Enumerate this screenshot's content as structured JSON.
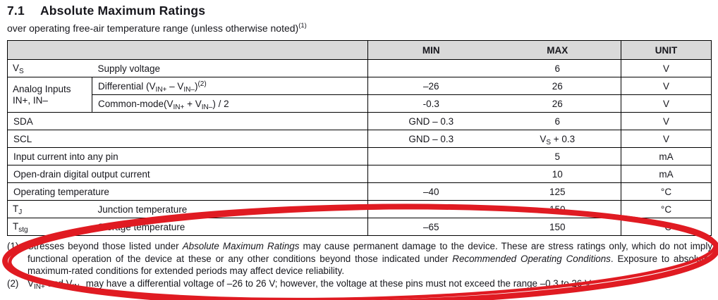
{
  "page": {
    "section_number": "7.1",
    "section_title": "Absolute Maximum Ratings",
    "subtitle": "over operating free-air temperature range (unless otherwise noted)",
    "subtitle_footnote_ref": "(1)"
  },
  "table": {
    "headers": {
      "min": "MIN",
      "max": "MAX",
      "unit": "UNIT"
    },
    "rows": [
      {
        "layout": "split",
        "symbol": "V~S~",
        "desc": "Supply voltage",
        "min": "",
        "max": "6",
        "unit": "V"
      },
      {
        "layout": "group-first",
        "symbol": "Analog Inputs\nIN+, IN–",
        "desc": "Differential (V~IN+~ – V~IN–~)^(2)^",
        "min": "–26",
        "max": "26",
        "unit": "V"
      },
      {
        "layout": "group-rest",
        "desc": "Common-mode(V~IN+~ + V~IN–~) / 2",
        "min": "-0.3",
        "max": "26",
        "unit": "V"
      },
      {
        "layout": "full",
        "desc": "SDA",
        "min": "GND – 0.3",
        "max": "6",
        "unit": "V"
      },
      {
        "layout": "full",
        "desc": "SCL",
        "min": "GND – 0.3",
        "max": "V~S~ + 0.3",
        "unit": "V"
      },
      {
        "layout": "full",
        "desc": "Input current into any pin",
        "min": "",
        "max": "5",
        "unit": "mA"
      },
      {
        "layout": "full",
        "desc": "Open-drain digital output current",
        "min": "",
        "max": "10",
        "unit": "mA"
      },
      {
        "layout": "full",
        "desc": "Operating temperature",
        "min": "–40",
        "max": "125",
        "unit": "°C"
      },
      {
        "layout": "split",
        "symbol": "T~J~",
        "desc": "Junction temperature",
        "min": "",
        "max": "150",
        "unit": "°C"
      },
      {
        "layout": "split",
        "symbol": "T~stg~",
        "desc": "Storage temperature",
        "min": "–65",
        "max": "150",
        "unit": "°C"
      }
    ]
  },
  "footnotes": [
    {
      "marker": "(1)",
      "text": "Stresses beyond those listed under *Absolute Maximum Ratings* may cause permanent damage to the device. These are stress ratings only, which do not imply functional operation of the device at these or any other conditions beyond those indicated under *Recommended Operating Conditions*. Exposure to absolute-maximum-rated conditions for extended periods may affect device reliability."
    },
    {
      "marker": "(2)",
      "text": "V~IN+~ and V~IN–~ may have a differential voltage of –26 to 26 V; however, the voltage at these pins must not exceed the range –0.3 to 26 V."
    }
  ],
  "annotation": {
    "shape": "hand-drawn ellipse circling footnotes",
    "color": "#e01b22"
  }
}
